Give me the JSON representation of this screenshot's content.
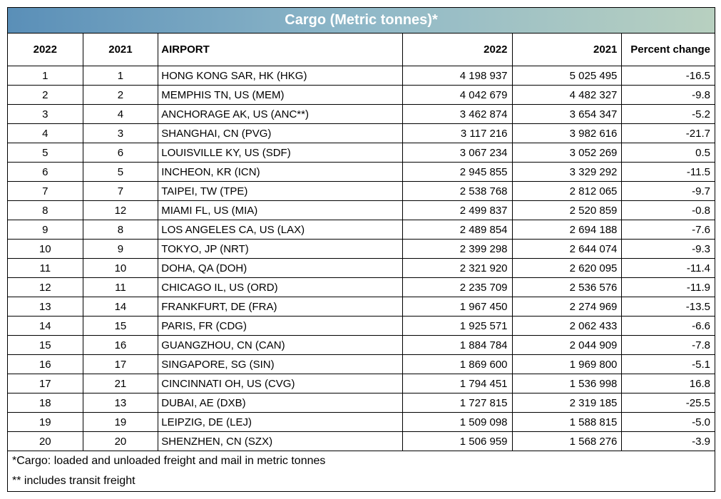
{
  "title": "Cargo (Metric tonnes)*",
  "columns": [
    "2022",
    "2021",
    "AIRPORT",
    "2022",
    "2021",
    "Percent change"
  ],
  "rows": [
    {
      "r22": "1",
      "r21": "1",
      "airport": "HONG KONG SAR, HK (HKG)",
      "v22": "4 198 937",
      "v21": "5 025 495",
      "pct": "-16.5"
    },
    {
      "r22": "2",
      "r21": "2",
      "airport": "MEMPHIS TN, US (MEM)",
      "v22": "4 042 679",
      "v21": "4 482 327",
      "pct": "-9.8"
    },
    {
      "r22": "3",
      "r21": "4",
      "airport": "ANCHORAGE AK, US (ANC**)",
      "v22": "3 462 874",
      "v21": "3 654 347",
      "pct": "-5.2"
    },
    {
      "r22": "4",
      "r21": "3",
      "airport": "SHANGHAI, CN (PVG)",
      "v22": "3 117 216",
      "v21": "3 982 616",
      "pct": "-21.7"
    },
    {
      "r22": "5",
      "r21": "6",
      "airport": "LOUISVILLE KY, US (SDF)",
      "v22": "3 067 234",
      "v21": "3 052 269",
      "pct": "0.5"
    },
    {
      "r22": "6",
      "r21": "5",
      "airport": "INCHEON, KR (ICN)",
      "v22": "2 945 855",
      "v21": "3 329 292",
      "pct": "-11.5"
    },
    {
      "r22": "7",
      "r21": "7",
      "airport": "TAIPEI, TW (TPE)",
      "v22": "2 538 768",
      "v21": "2 812 065",
      "pct": "-9.7"
    },
    {
      "r22": "8",
      "r21": "12",
      "airport": "MIAMI FL, US (MIA)",
      "v22": "2 499 837",
      "v21": "2 520 859",
      "pct": "-0.8"
    },
    {
      "r22": "9",
      "r21": "8",
      "airport": "LOS ANGELES CA, US (LAX)",
      "v22": "2 489 854",
      "v21": "2 694 188",
      "pct": "-7.6"
    },
    {
      "r22": "10",
      "r21": "9",
      "airport": "TOKYO, JP (NRT)",
      "v22": "2 399 298",
      "v21": "2 644 074",
      "pct": "-9.3"
    },
    {
      "r22": "11",
      "r21": "10",
      "airport": "DOHA, QA (DOH)",
      "v22": "2 321 920",
      "v21": "2 620 095",
      "pct": "-11.4"
    },
    {
      "r22": "12",
      "r21": "11",
      "airport": "CHICAGO IL, US (ORD)",
      "v22": "2 235 709",
      "v21": "2 536 576",
      "pct": "-11.9"
    },
    {
      "r22": "13",
      "r21": "14",
      "airport": "FRANKFURT, DE (FRA)",
      "v22": "1 967 450",
      "v21": "2 274 969",
      "pct": "-13.5"
    },
    {
      "r22": "14",
      "r21": "15",
      "airport": "PARIS, FR (CDG)",
      "v22": "1 925 571",
      "v21": "2 062 433",
      "pct": "-6.6"
    },
    {
      "r22": "15",
      "r21": "16",
      "airport": "GUANGZHOU, CN (CAN)",
      "v22": "1 884 784",
      "v21": "2 044 909",
      "pct": "-7.8"
    },
    {
      "r22": "16",
      "r21": "17",
      "airport": "SINGAPORE, SG (SIN)",
      "v22": "1 869 600",
      "v21": "1 969 800",
      "pct": "-5.1"
    },
    {
      "r22": "17",
      "r21": "21",
      "airport": "CINCINNATI OH, US (CVG)",
      "v22": "1 794 451",
      "v21": "1 536 998",
      "pct": "16.8"
    },
    {
      "r22": "18",
      "r21": "13",
      "airport": "DUBAI, AE (DXB)",
      "v22": "1 727 815",
      "v21": "2 319 185",
      "pct": "-25.5"
    },
    {
      "r22": "19",
      "r21": "19",
      "airport": "LEIPZIG, DE (LEJ)",
      "v22": "1 509 098",
      "v21": "1 588 815",
      "pct": "-5.0"
    },
    {
      "r22": "20",
      "r21": "20",
      "airport": "SHENZHEN, CN (SZX)",
      "v22": "1 506 959",
      "v21": "1 568 276",
      "pct": "-3.9"
    }
  ],
  "footnotes": [
    "*Cargo: loaded and unloaded freight and mail in metric tonnes",
    "** includes transit freight"
  ]
}
